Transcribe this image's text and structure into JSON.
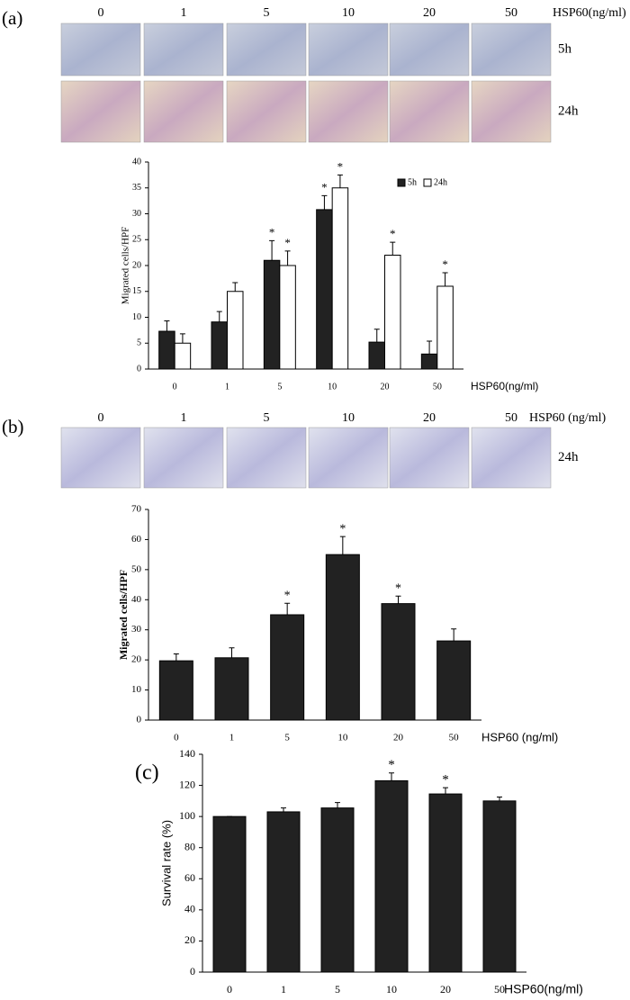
{
  "figure": {
    "panel_a": {
      "label": "(a)",
      "image_columns": [
        "0",
        "1",
        "5",
        "10",
        "20",
        "50"
      ],
      "image_unit": "HSP60(ng/ml)",
      "image_rows": [
        "5h",
        "24h"
      ]
    },
    "panel_b": {
      "label": "(b)",
      "image_columns": [
        "0",
        "1",
        "5",
        "10",
        "20",
        "50"
      ],
      "image_unit": "HSP60 (ng/ml)",
      "image_rows": [
        "24h"
      ]
    },
    "panel_c": {
      "label": "(c)"
    }
  },
  "chart_data": [
    {
      "type": "bar",
      "x_label": "HSP60(ng/ml)",
      "y_label": "Migrated cells/HPF",
      "categories": [
        "0",
        "1",
        "5",
        "10",
        "20",
        "50"
      ],
      "series": [
        {
          "name": "5h",
          "color": "#222222",
          "values": [
            7.3,
            9.1,
            21,
            30.8,
            5.2,
            2.9
          ],
          "errors": [
            2,
            2,
            3.8,
            2.7,
            2.5,
            2.5
          ],
          "significance": [
            null,
            null,
            "*",
            "*",
            null,
            null
          ]
        },
        {
          "name": "24h",
          "color": "#ffffff",
          "values": [
            5,
            15,
            20,
            35,
            22,
            16
          ],
          "errors": [
            1.8,
            1.7,
            2.8,
            2.5,
            2.5,
            2.6
          ],
          "significance": [
            null,
            null,
            "*",
            "*",
            "*",
            "*"
          ]
        }
      ],
      "edgecolor": "#000000",
      "ylim": [
        0,
        40
      ],
      "yticks": [
        0,
        5,
        10,
        15,
        20,
        25,
        30,
        35,
        40
      ],
      "legend": "top-right",
      "grid": false
    },
    {
      "type": "bar",
      "x_label": "HSP60 (ng/ml)",
      "y_label": "Migrated cells/HPF",
      "categories": [
        "0",
        "1",
        "5",
        "10",
        "20",
        "50"
      ],
      "values": [
        19.7,
        20.7,
        35,
        55,
        38.7,
        26.3
      ],
      "errors": [
        2.3,
        3.3,
        3.8,
        6,
        2.5,
        4
      ],
      "significance": [
        null,
        null,
        "*",
        "*",
        "*",
        null
      ],
      "color": "#222222",
      "edgecolor": "#000000",
      "ylim": [
        0,
        70
      ],
      "yticks": [
        0,
        10,
        20,
        30,
        40,
        50,
        60,
        70
      ],
      "grid": false
    },
    {
      "type": "bar",
      "x_label": "HSP60(ng/ml)",
      "y_label": "Survival rate (%)",
      "categories": [
        "0",
        "1",
        "5",
        "10",
        "20",
        "50"
      ],
      "values": [
        100,
        103,
        105.5,
        123,
        114.5,
        110
      ],
      "errors": [
        0,
        2.5,
        3.5,
        5,
        4,
        2.5
      ],
      "significance": [
        null,
        null,
        null,
        "*",
        "*",
        null
      ],
      "color": "#222222",
      "edgecolor": "#000000",
      "ylim": [
        0,
        140
      ],
      "yticks": [
        0,
        20,
        40,
        60,
        80,
        100,
        120,
        140
      ],
      "grid": false
    }
  ]
}
